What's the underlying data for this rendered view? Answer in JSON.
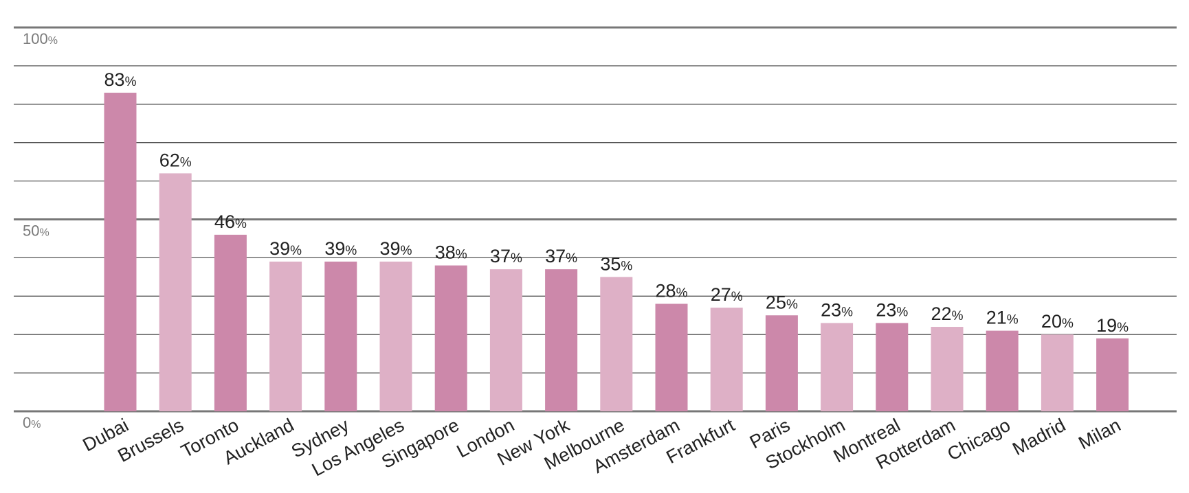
{
  "chart_data": {
    "type": "bar",
    "categories": [
      "Dubai",
      "Brussels",
      "Toronto",
      "Auckland",
      "Sydney",
      "Los Angeles",
      "Singapore",
      "London",
      "New York",
      "Melbourne",
      "Amsterdam",
      "Frankfurt",
      "Paris",
      "Stockholm",
      "Montreal",
      "Rotterdam",
      "Chicago",
      "Madrid",
      "Milan"
    ],
    "values": [
      83,
      62,
      46,
      39,
      39,
      39,
      38,
      37,
      37,
      35,
      28,
      27,
      25,
      23,
      23,
      22,
      21,
      20,
      19
    ],
    "value_label_unit": "%",
    "ylim": [
      0,
      100
    ],
    "y_ticks": [
      {
        "value": 100,
        "label": "100",
        "unit": "%"
      },
      {
        "value": 50,
        "label": "50",
        "unit": "%"
      },
      {
        "value": 0,
        "label": "0",
        "unit": "%"
      }
    ],
    "gridlines": [
      0,
      10,
      20,
      30,
      40,
      50,
      60,
      70,
      80,
      90,
      100
    ],
    "grid": true,
    "legend": "none",
    "title": "",
    "xlabel": "",
    "ylabel": "",
    "colors": {
      "bar_dark": "#cc88aa",
      "bar_light": "#deb0c6",
      "gridline": "#555555",
      "gridline_major": "#777777",
      "tick_text": "#7a7a7a",
      "value_text": "#222222"
    }
  }
}
